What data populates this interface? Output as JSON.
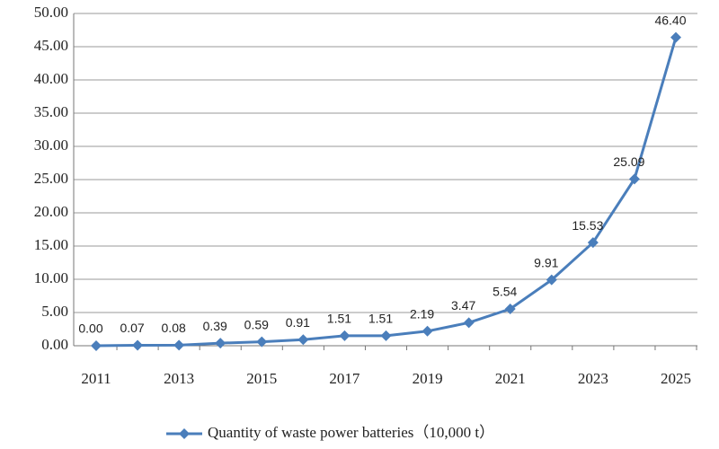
{
  "chart_data": {
    "type": "line",
    "categories": [
      "2011",
      null,
      "2013",
      null,
      "2015",
      null,
      "2017",
      null,
      "2019",
      null,
      "2021",
      null,
      "2023",
      null,
      "2025"
    ],
    "series": [
      {
        "name": "Quantity of waste power batteries（10,000 t）",
        "color": "#4a7ebb",
        "values": [
          0,
          0.07,
          0.08,
          0.39,
          0.59,
          0.91,
          1.51,
          1.51,
          2.19,
          3.47,
          5.54,
          9.91,
          15.53,
          25.09,
          46.4
        ],
        "value_labels": [
          "0.00",
          "0.07",
          "0.08",
          "0.39",
          "0.59",
          "0.91",
          "1.51",
          "1.51",
          "2.19",
          "3.47",
          "5.54",
          "9.91",
          "15.53",
          "25.09",
          "46.40"
        ]
      }
    ],
    "ylim": [
      0,
      50
    ],
    "yticks": [
      {
        "value": 0,
        "label": "0.00"
      },
      {
        "value": 5,
        "label": "5.00"
      },
      {
        "value": 10,
        "label": "10.00"
      },
      {
        "value": 15,
        "label": "15.00"
      },
      {
        "value": 20,
        "label": "20.00"
      },
      {
        "value": 25,
        "label": "25.00"
      },
      {
        "value": 30,
        "label": "30.00"
      },
      {
        "value": 35,
        "label": "35.00"
      },
      {
        "value": 40,
        "label": "40.00"
      },
      {
        "value": 45,
        "label": "45.00"
      },
      {
        "value": 50,
        "label": "50.00"
      }
    ],
    "grid": true,
    "legend": "bottom"
  }
}
